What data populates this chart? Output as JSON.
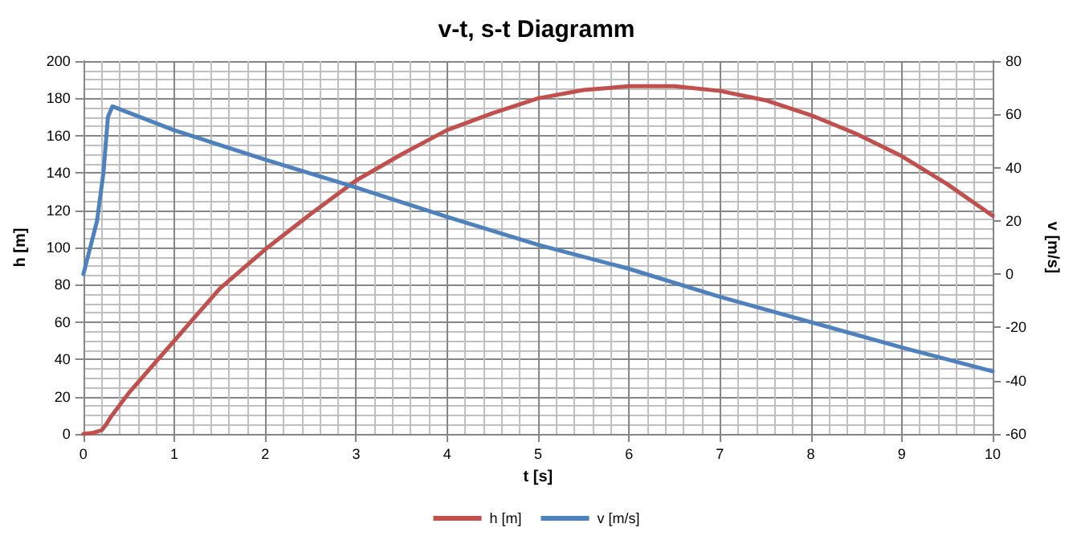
{
  "chart_data": {
    "type": "line",
    "title": "v-t, s-t Diagramm",
    "xlabel": "t [s]",
    "ylabel": "h [m]",
    "y2label": "v [m/s]",
    "series": [
      {
        "name": "h [m]",
        "color": "#c0504d",
        "x": [
          0,
          0.1,
          0.2,
          0.25,
          0.3,
          0.5,
          1,
          1.5,
          2,
          2.5,
          3,
          3.5,
          4,
          4.5,
          5,
          5.5,
          6,
          6.5,
          7,
          7.5,
          8,
          8.5,
          9,
          9.5,
          10
        ],
        "values": [
          0,
          0.5,
          2,
          5,
          9,
          22,
          50,
          78,
          99,
          118,
          136,
          150,
          163,
          172,
          180,
          184.5,
          186.5,
          186.5,
          184,
          179,
          171,
          161,
          149,
          134,
          117
        ]
      },
      {
        "name": "v [m/s]",
        "color": "#4f81bd",
        "axis": "y2",
        "x": [
          0,
          0.15,
          0.22,
          0.27,
          0.32,
          1,
          2,
          3,
          4,
          5,
          6,
          7,
          8,
          9,
          10
        ],
        "values": [
          0,
          20,
          38,
          59,
          63,
          54,
          43,
          32.5,
          21.5,
          11,
          2,
          -8.5,
          -18,
          -27.5,
          -36.5
        ]
      }
    ],
    "xlim": [
      0,
      10
    ],
    "xticks": [
      0,
      1,
      2,
      3,
      4,
      5,
      6,
      7,
      8,
      9,
      10
    ],
    "ylim": [
      0,
      200
    ],
    "yticks": [
      0,
      20,
      40,
      60,
      80,
      100,
      120,
      140,
      160,
      180,
      200
    ],
    "y2lim": [
      -60,
      80
    ],
    "y2ticks": [
      -60,
      -40,
      -20,
      0,
      20,
      40,
      60,
      80
    ],
    "grid": true,
    "legend": "bottom",
    "marker": "none",
    "line_style": "solid"
  }
}
